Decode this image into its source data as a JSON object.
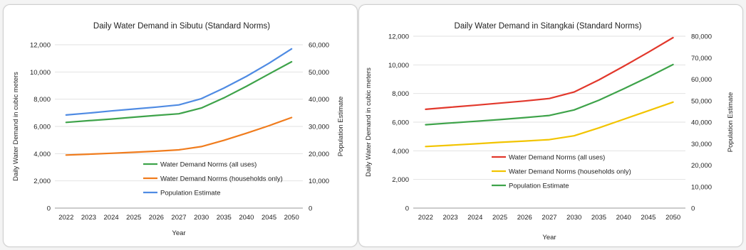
{
  "chart_data": [
    {
      "type": "line",
      "title": "Daily Water Demand in Sibutu (Standard Norms)",
      "xlabel": "Year",
      "ylabel": "Daily Water Demand in cubic meters",
      "y2label": "Population Estimate",
      "categories": [
        "2022",
        "2023",
        "2024",
        "2025",
        "2026",
        "2027",
        "2030",
        "2035",
        "2040",
        "2045",
        "2050"
      ],
      "ylim": [
        0,
        12000
      ],
      "y2lim": [
        0,
        60000
      ],
      "y_ticks": [
        "0",
        "2,000",
        "4,000",
        "6,000",
        "8,000",
        "10,000",
        "12,000"
      ],
      "y2_ticks": [
        "0",
        "10,000",
        "20,000",
        "30,000",
        "40,000",
        "50,000",
        "60,000"
      ],
      "grid": true,
      "legend_position": "bottom-right",
      "series": [
        {
          "name": "Water Demand Norms (all uses)",
          "axis": "left",
          "color": "#3ea34a",
          "values": [
            6300,
            6420,
            6540,
            6680,
            6810,
            6930,
            7350,
            8100,
            8950,
            9850,
            10750
          ]
        },
        {
          "name": "Water Demand Norms (households only)",
          "axis": "left",
          "color": "#f07c1d",
          "values": [
            3900,
            3960,
            4030,
            4100,
            4180,
            4280,
            4520,
            4980,
            5500,
            6050,
            6650
          ]
        },
        {
          "name": "Population Estimate",
          "axis": "right",
          "color": "#4f8be3",
          "values": [
            34200,
            34900,
            35700,
            36400,
            37100,
            37900,
            40200,
            44100,
            48400,
            53200,
            58500
          ]
        }
      ]
    },
    {
      "type": "line",
      "title": "Daily Water Demand in Sitangkai (Standard Norms)",
      "xlabel": "Year",
      "ylabel": "Daily Water Demand in cubic meters",
      "y2label": "Population Estimate",
      "categories": [
        "2022",
        "2023",
        "2024",
        "2025",
        "2026",
        "2027",
        "2030",
        "2035",
        "2040",
        "2045",
        "2050"
      ],
      "ylim": [
        0,
        12000
      ],
      "y2lim": [
        0,
        80000
      ],
      "y_ticks": [
        "0",
        "2,000",
        "4,000",
        "6,000",
        "8,000",
        "10,000",
        "12,000"
      ],
      "y2_ticks": [
        "0",
        "10,000",
        "20,000",
        "30,000",
        "40,000",
        "50,000",
        "60,000",
        "70,000",
        "80,000"
      ],
      "grid": true,
      "legend_position": "bottom-center",
      "series": [
        {
          "name": "Water Demand Norms (all uses)",
          "axis": "left",
          "color": "#e2382c",
          "values": [
            6900,
            7040,
            7180,
            7330,
            7480,
            7650,
            8100,
            8950,
            9900,
            10880,
            11900
          ]
        },
        {
          "name": "Water Demand Norms (households only)",
          "axis": "left",
          "color": "#f2c400",
          "values": [
            4300,
            4390,
            4490,
            4590,
            4680,
            4780,
            5050,
            5600,
            6200,
            6800,
            7400
          ]
        },
        {
          "name": "Population Estimate",
          "axis": "right",
          "color": "#3ea34a",
          "values": [
            38800,
            39600,
            40400,
            41200,
            42100,
            43100,
            45700,
            50200,
            55500,
            61000,
            66800
          ]
        }
      ]
    }
  ]
}
